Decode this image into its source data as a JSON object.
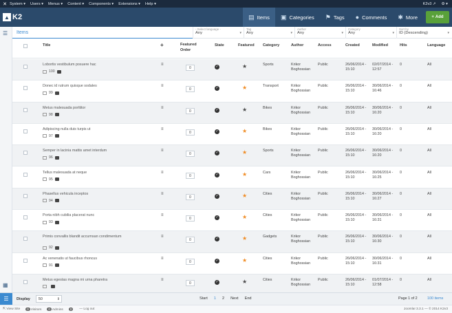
{
  "topbar": {
    "menu": [
      "System",
      "Users",
      "Menus",
      "Content",
      "Components",
      "Extensions",
      "Help"
    ],
    "site_name": "K2v3 ↗",
    "user_menu": "⚙ ▾"
  },
  "header": {
    "logo_text": "K2",
    "nav": [
      {
        "label": "Items",
        "icon": "items-icon",
        "glyph": "▤"
      },
      {
        "label": "Categories",
        "icon": "folder-icon",
        "glyph": "▣"
      },
      {
        "label": "Tags",
        "icon": "tag-icon",
        "glyph": "⚑"
      },
      {
        "label": "Comments",
        "icon": "comment-icon",
        "glyph": "●"
      },
      {
        "label": "More",
        "icon": "gear-icon",
        "glyph": "✱"
      }
    ],
    "add_label": "Add"
  },
  "filters": {
    "title": "Items",
    "selects": [
      {
        "label": "- Select language -",
        "value": "Any"
      },
      {
        "label": "Tag",
        "value": "Any"
      },
      {
        "label": "Author",
        "value": "Any"
      },
      {
        "label": "Category",
        "value": "Any"
      },
      {
        "label": "Sort by",
        "value": "ID (Descending)"
      }
    ]
  },
  "columns": {
    "title": "Title",
    "featured_order": "Featured Order",
    "state": "State",
    "featured": "Featured",
    "category": "Category",
    "author": "Author",
    "access": "Access",
    "created": "Created",
    "modified": "Modified",
    "hits": "Hits",
    "language": "Language"
  },
  "rows": [
    {
      "title": "Lobortis vestibulum posuere hac",
      "id": "100",
      "featured": false,
      "category": "Sports",
      "author": "Krikor Boghossian",
      "access": "Public",
      "created": "26/06/2014 - 15:10",
      "modified": "02/07/2014 - 12:57",
      "hits": "0",
      "language": "All"
    },
    {
      "title": "Donec id rutrum quisque sodales",
      "id": "99",
      "featured": true,
      "category": "Transport",
      "author": "Krikor Boghossian",
      "access": "Public",
      "created": "26/06/2014 - 15:10",
      "modified": "30/06/2014 - 16:46",
      "hits": "0",
      "language": "All"
    },
    {
      "title": "Metus malesuada porttitor",
      "id": "98",
      "featured": false,
      "category": "Bikes",
      "author": "Krikor Boghossian",
      "access": "Public",
      "created": "26/06/2014 - 15:10",
      "modified": "30/06/2014 - 16:20",
      "hits": "0",
      "language": "All"
    },
    {
      "title": "Adipiscing nulla duis turpis ut",
      "id": "97",
      "featured": true,
      "category": "Bikes",
      "author": "Krikor Boghossian",
      "access": "Public",
      "created": "26/06/2014 - 15:10",
      "modified": "30/06/2014 - 16:20",
      "hits": "0",
      "language": "All"
    },
    {
      "title": "Semper in lacinia mattis amet interdum",
      "id": "96",
      "featured": true,
      "category": "Sports",
      "author": "Krikor Boghossian",
      "access": "Public",
      "created": "26/06/2014 - 15:10",
      "modified": "30/06/2014 - 16:20",
      "hits": "0",
      "language": "All"
    },
    {
      "title": "Tellus malesuada at neque",
      "id": "95",
      "featured": true,
      "category": "Cars",
      "author": "Krikor Boghossian",
      "access": "Public",
      "created": "26/06/2014 - 15:10",
      "modified": "30/06/2014 - 16:25",
      "hits": "0",
      "language": "All"
    },
    {
      "title": "Phasellus vehicula inceptos",
      "id": "94",
      "featured": true,
      "category": "Cities",
      "author": "Krikor Boghossian",
      "access": "Public",
      "created": "26/06/2014 - 15:10",
      "modified": "30/06/2014 - 16:27",
      "hits": "0",
      "language": "All"
    },
    {
      "title": "Porta nibh cubilia placerat nunc",
      "id": "93",
      "featured": true,
      "category": "Cities",
      "author": "Krikor Boghossian",
      "access": "Public",
      "created": "26/06/2014 - 15:10",
      "modified": "30/06/2014 - 16:31",
      "hits": "0",
      "language": "All"
    },
    {
      "title": "Primis convallis blandit accumsan condimentum",
      "id": "92",
      "featured": true,
      "category": "Gadgets",
      "author": "Krikor Boghossian",
      "access": "Public",
      "created": "26/06/2014 - 15:10",
      "modified": "30/06/2014 - 16:30",
      "hits": "0",
      "language": "All"
    },
    {
      "title": "Ac venenatis ut faucibus rhoncus",
      "id": "91",
      "featured": true,
      "category": "Cities",
      "author": "Krikor Boghossian",
      "access": "Public",
      "created": "26/06/2014 - 15:10",
      "modified": "30/06/2014 - 16:31",
      "hits": "0",
      "language": "All"
    },
    {
      "title": "Metus egestas magna mi urna pharetra",
      "id": "",
      "featured": false,
      "category": "Cities",
      "author": "Krikor Boghossian",
      "access": "Public",
      "created": "26/06/2014 - 15:10",
      "modified": "01/07/2014 - 12:58",
      "hits": "0",
      "language": "All"
    }
  ],
  "footer": {
    "display_label": "Display",
    "limit": "50",
    "pager": [
      "Start",
      "1",
      "2",
      "Next",
      "End"
    ],
    "page_info": "Page 1 of 2",
    "total": "100 items"
  },
  "statusbar": {
    "view_site": "View Site",
    "visitors_count": "0",
    "visitors": "Visitors",
    "admins_count": "0",
    "admins": "Admins",
    "messages_count": "0",
    "logout": "Log out",
    "version": "Joomla! 3.3.1 — © 2014 K2v3"
  },
  "colors": {
    "header": "#2b4a6b",
    "topbar": "#1b2a3d",
    "accent": "#3b8ad0",
    "add_button": "#59a13a",
    "star_on": "#f08c24",
    "star_off": "#4a4a4a"
  }
}
